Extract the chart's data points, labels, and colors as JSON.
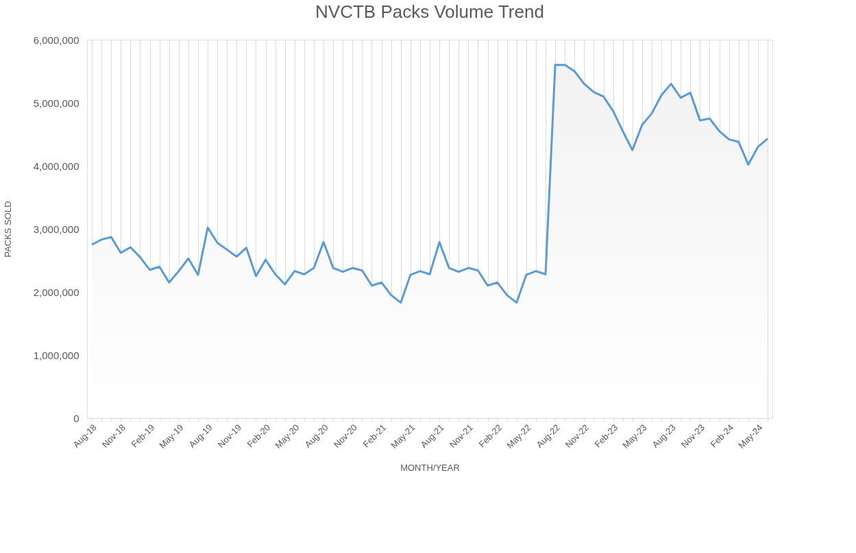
{
  "chart_data": {
    "type": "area",
    "title": "NVCTB Packs Volume Trend",
    "xlabel": "MONTH/YEAR",
    "ylabel": "PACKS SOLD",
    "categories": [
      "Aug-18",
      null,
      null,
      "Nov-18",
      null,
      null,
      "Feb-19",
      null,
      null,
      "May-19",
      null,
      null,
      "Aug-19",
      null,
      null,
      "Nov-19",
      null,
      null,
      "Feb-20",
      null,
      null,
      "May-20",
      null,
      null,
      "Aug-20",
      null,
      null,
      "Nov-20",
      null,
      null,
      "Feb-21",
      null,
      null,
      "May-21",
      null,
      null,
      "Aug-21",
      null,
      null,
      "Nov-21",
      null,
      null,
      "Feb-22",
      null,
      null,
      "May-22",
      null,
      null,
      "Aug-22",
      null,
      null,
      "Nov-22",
      null,
      null,
      "Feb-23",
      null,
      null,
      "May-23",
      null,
      null,
      "Aug-23",
      null,
      null,
      "Nov-23",
      null,
      null,
      "Feb-24",
      null,
      null,
      "May-24",
      null
    ],
    "series": [
      {
        "color": "#5b9bd5",
        "values": [
          2750000,
          2830000,
          2870000,
          2620000,
          2710000,
          2550000,
          2350000,
          2400000,
          2150000,
          2330000,
          2530000,
          2270000,
          3020000,
          2780000,
          2670000,
          2560000,
          2700000,
          2250000,
          2510000,
          2280000,
          2120000,
          2330000,
          2280000,
          2380000,
          2790000,
          2380000,
          2320000,
          2380000,
          2340000,
          2100000,
          2150000,
          1950000,
          1830000,
          2270000,
          2330000,
          2280000,
          2790000,
          2380000,
          2320000,
          2380000,
          2340000,
          2100000,
          2150000,
          1950000,
          1830000,
          2270000,
          2330000,
          2280000,
          5600000,
          5600000,
          5500000,
          5300000,
          5170000,
          5100000,
          4870000,
          4550000,
          4250000,
          4650000,
          4830000,
          5120000,
          5300000,
          5080000,
          5160000,
          4720000,
          4750000,
          4550000,
          4420000,
          4380000,
          4020000,
          4300000,
          4430000
        ]
      }
    ],
    "ylim": [
      0,
      6000000
    ],
    "yticks": [
      {
        "value": 0,
        "label": "0"
      },
      {
        "value": 1000000,
        "label": "1,000,000"
      },
      {
        "value": 2000000,
        "label": "2,000,000"
      },
      {
        "value": 3000000,
        "label": "3,000,000"
      },
      {
        "value": 4000000,
        "label": "4,000,000"
      },
      {
        "value": 5000000,
        "label": "5,000,000"
      },
      {
        "value": 6000000,
        "label": "6,000,000"
      }
    ],
    "grid": "x",
    "line_style": "solid",
    "marker": "none"
  }
}
